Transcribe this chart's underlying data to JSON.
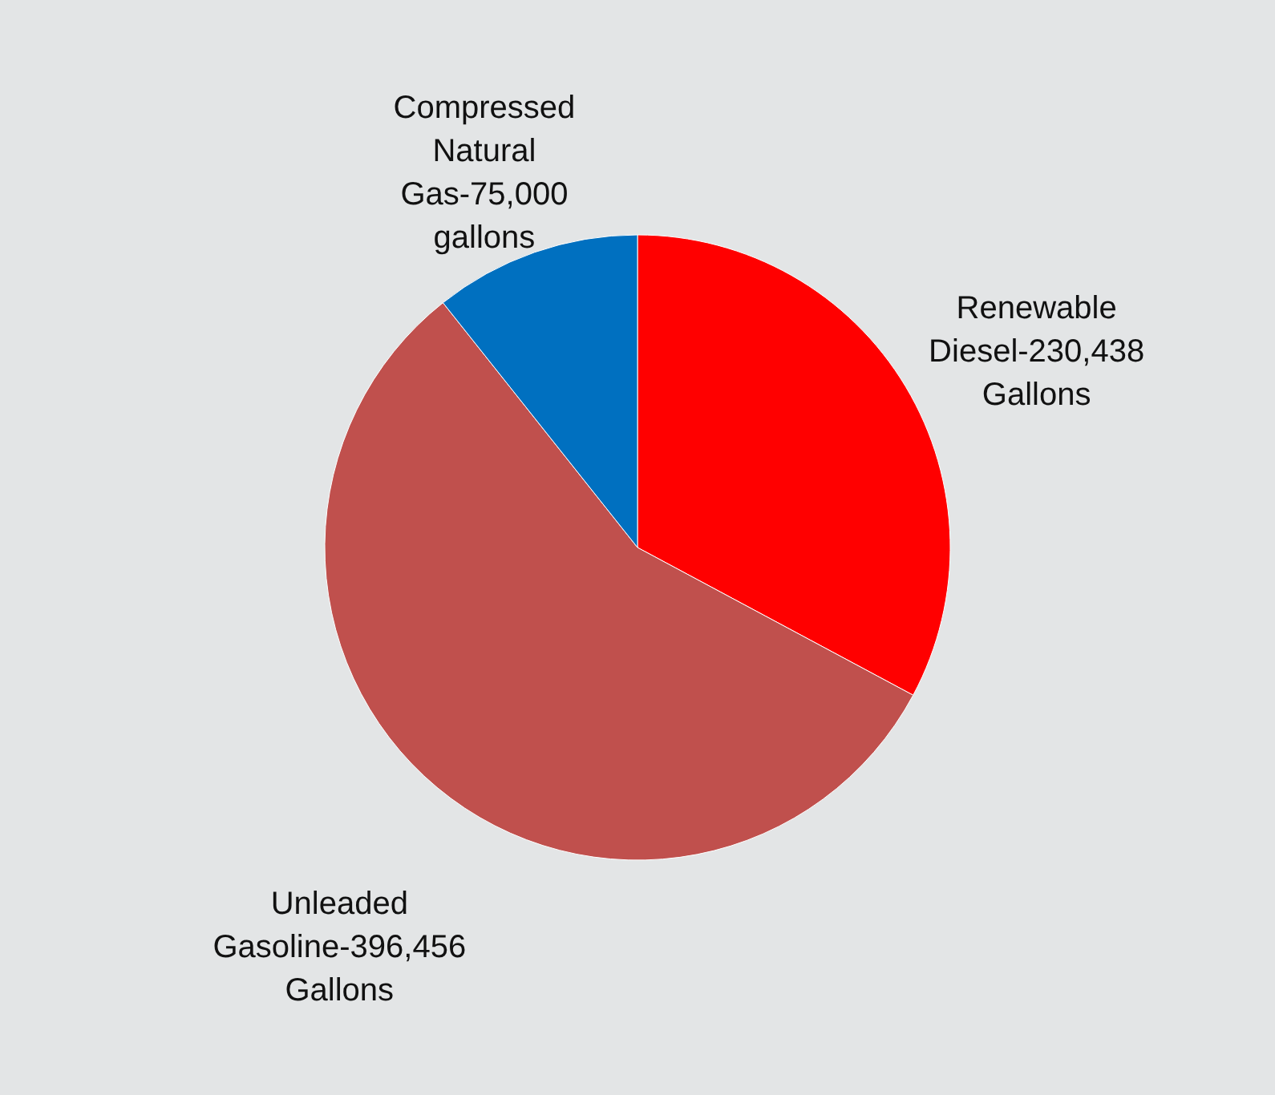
{
  "chart_data": {
    "type": "pie",
    "categories": [
      "Renewable Diesel",
      "Unleaded Gasoline",
      "Compressed Natural Gas"
    ],
    "values": [
      230438,
      396456,
      75000
    ],
    "value_labels": [
      "230,438 Gallons",
      "396,456 Gallons",
      "75,000 gallons"
    ],
    "colors": [
      "#ff0000",
      "#c0504d",
      "#0070c0"
    ]
  }
}
